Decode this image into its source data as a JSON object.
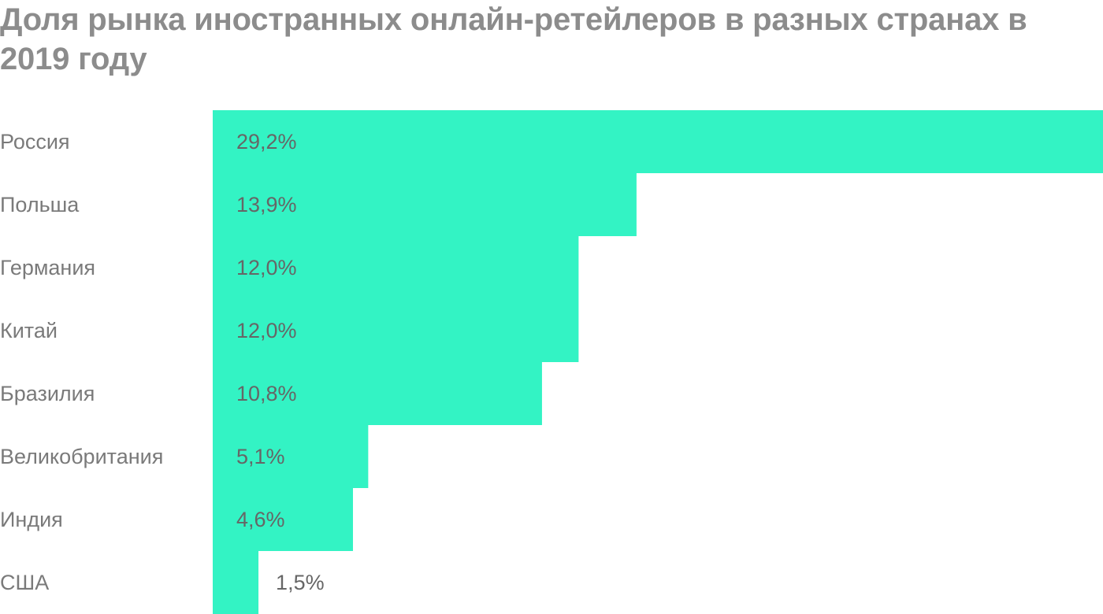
{
  "title": "Доля рынка иностранных онлайн-ретейлеров в разных странах в 2019 году",
  "bar_color": "#33f3c4",
  "label_color": "#7a7a7a",
  "value_label_color": "#666666",
  "title_color": "#8c8c8c",
  "chart_data": {
    "type": "bar",
    "orientation": "horizontal",
    "title": "Доля рынка иностранных онлайн-ретейлеров в разных странах в 2019 году",
    "categories": [
      "Россия",
      "Польша",
      "Германия",
      "Китай",
      "Бразилия",
      "Великобритания",
      "Индия",
      "США"
    ],
    "values": [
      29.2,
      13.9,
      12.0,
      12.0,
      10.8,
      5.1,
      4.6,
      1.5
    ],
    "value_labels": [
      "29,2%",
      "13,9%",
      "12,0%",
      "12,0%",
      "10,8%",
      "5,1%",
      "4,6%",
      "1,5%"
    ],
    "unit": "%",
    "xlabel": "",
    "ylabel": "",
    "grid": false,
    "legend": "none"
  }
}
